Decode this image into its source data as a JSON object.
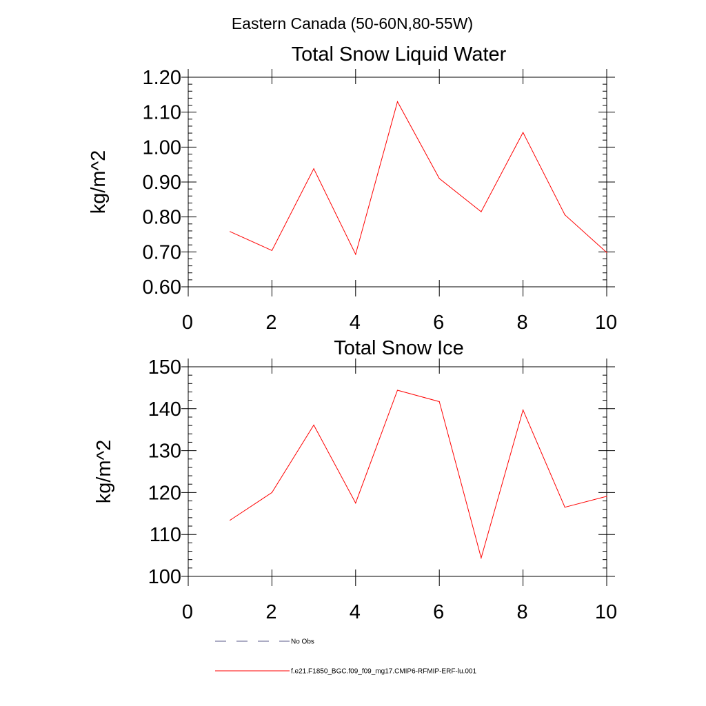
{
  "figure": {
    "title": "Eastern Canada (50-60N,80-55W)"
  },
  "chart_data": [
    {
      "type": "line",
      "title": "Total Snow Liquid Water",
      "xlabel": "",
      "ylabel": "kg/m^2",
      "xlim": [
        0,
        10
      ],
      "ylim": [
        0.6,
        1.2
      ],
      "x_ticks": [
        0,
        2,
        4,
        6,
        8,
        10
      ],
      "y_ticks": [
        0.6,
        0.7,
        0.8,
        0.9,
        1.0,
        1.1,
        1.2
      ],
      "y_tick_labels": [
        "0.60",
        "0.70",
        "0.80",
        "0.90",
        "1.00",
        "1.10",
        "1.20"
      ],
      "grid": false,
      "series": [
        {
          "color": "#ff0000",
          "x": [
            1,
            2,
            3,
            4,
            5,
            6,
            7,
            8,
            9,
            10
          ],
          "values": [
            0.758,
            0.704,
            0.938,
            0.693,
            1.13,
            0.91,
            0.815,
            1.042,
            0.806,
            0.698
          ]
        }
      ]
    },
    {
      "type": "line",
      "title": "Total Snow Ice",
      "xlabel": "",
      "ylabel": "kg/m^2",
      "xlim": [
        0,
        10
      ],
      "ylim": [
        100,
        150
      ],
      "x_ticks": [
        0,
        2,
        4,
        6,
        8,
        10
      ],
      "y_ticks": [
        100,
        110,
        120,
        130,
        140,
        150
      ],
      "y_tick_labels": [
        "100",
        "110",
        "120",
        "130",
        "140",
        "150"
      ],
      "grid": false,
      "series": [
        {
          "color": "#ff0000",
          "x": [
            1,
            2,
            3,
            4,
            5,
            6,
            7,
            8,
            9,
            10
          ],
          "values": [
            113.4,
            120.0,
            136.1,
            117.5,
            144.4,
            141.7,
            104.4,
            139.7,
            116.5,
            119.1
          ]
        }
      ]
    }
  ],
  "legend": {
    "placement": "bottom-left",
    "entries": [
      {
        "label": "No Obs",
        "color": "#5a5a8a",
        "style": "dashed"
      },
      {
        "label": "f.e21.F1850_BGC.f09_f09_mg17.CMIP6-RFMIP-ERF-lu.001",
        "color": "#ff0000",
        "style": "solid"
      }
    ]
  }
}
